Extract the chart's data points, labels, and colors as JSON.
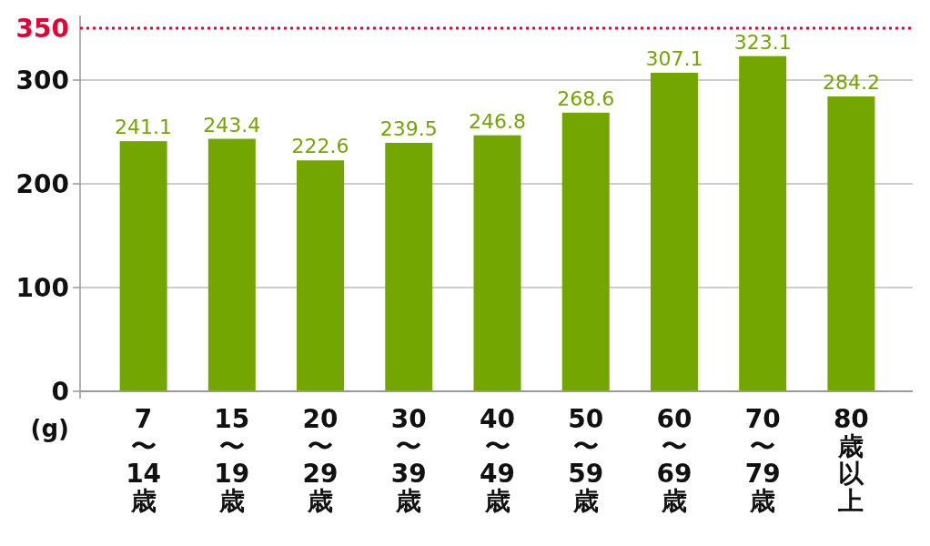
{
  "chart_data": {
    "type": "bar",
    "ylabel": "(g)",
    "categories": [
      "7〜14歳",
      "15〜19歳",
      "20〜29歳",
      "30〜39歳",
      "40〜49歳",
      "50〜59歳",
      "60〜69歳",
      "70〜79歳",
      "80歳以上"
    ],
    "values": [
      241.1,
      243.4,
      222.6,
      239.5,
      246.8,
      268.6,
      307.1,
      323.1,
      284.2
    ],
    "color": "#74a600",
    "ylim": [
      0,
      350
    ],
    "yticks": [
      0,
      100,
      200,
      300
    ],
    "grid": "y",
    "data_labels": true,
    "ref_lines": [
      {
        "axis": "y",
        "value": 350,
        "label": "350",
        "color": "#e60033",
        "line_style": "dotted"
      }
    ]
  }
}
